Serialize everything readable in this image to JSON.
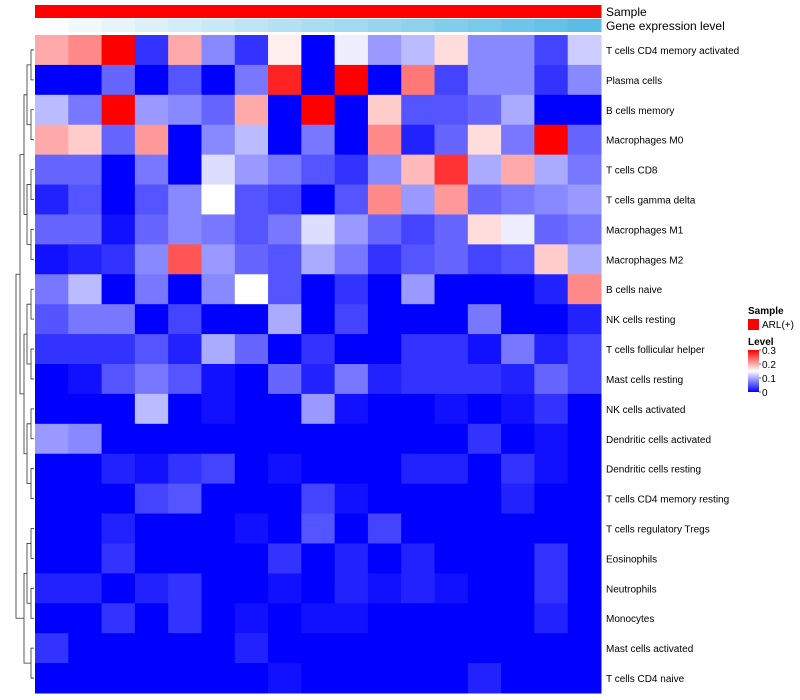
{
  "chart_data": {
    "type": "heatmap",
    "title": "",
    "columns_count": 17,
    "annotations": [
      {
        "name": "Sample",
        "colors": [
          "#ff0000",
          "#ff0000",
          "#ff0000",
          "#ff0000",
          "#ff0000",
          "#ff0000",
          "#ff0000",
          "#ff0000",
          "#ff0000",
          "#ff0000",
          "#ff0000",
          "#ff0000",
          "#ff0000",
          "#ff0000",
          "#ff0000",
          "#ff0000",
          "#ff0000"
        ]
      },
      {
        "name": "Gene expression level",
        "colors": [
          "#fbfdfe",
          "#f1f9fd",
          "#e7f5fb",
          "#ddf1f9",
          "#d3edf8",
          "#c9e9f6",
          "#bfe5f5",
          "#b5e1f3",
          "#abddf2",
          "#a1d9f0",
          "#97d5ef",
          "#8dd1ed",
          "#83cdec",
          "#79c9ea",
          "#6fc5e9",
          "#65c1e7",
          "#5bbde6"
        ]
      }
    ],
    "rows": [
      {
        "label": "T cells CD4 memory activated",
        "values": [
          0.2,
          0.22,
          0.3,
          0.03,
          0.2,
          0.08,
          0.03,
          0.16,
          0.0,
          0.14,
          0.09,
          0.11,
          0.17,
          0.08,
          0.08,
          0.04,
          0.12
        ]
      },
      {
        "label": "Plasma cells",
        "values": [
          0.0,
          0.0,
          0.06,
          0.0,
          0.05,
          0.0,
          0.07,
          0.28,
          0.0,
          0.3,
          0.0,
          0.23,
          0.04,
          0.08,
          0.08,
          0.03,
          0.08
        ]
      },
      {
        "label": "B cells memory",
        "values": [
          0.11,
          0.07,
          0.3,
          0.09,
          0.08,
          0.06,
          0.2,
          0.0,
          0.3,
          0.0,
          0.18,
          0.05,
          0.05,
          0.06,
          0.1,
          0.0,
          0.0
        ]
      },
      {
        "label": "Macrophages M0",
        "values": [
          0.2,
          0.18,
          0.06,
          0.21,
          0.0,
          0.08,
          0.11,
          0.0,
          0.07,
          0.0,
          0.22,
          0.02,
          0.06,
          0.17,
          0.07,
          0.3,
          0.06
        ]
      },
      {
        "label": "T cells CD8",
        "values": [
          0.06,
          0.06,
          0.0,
          0.07,
          0.0,
          0.13,
          0.09,
          0.07,
          0.05,
          0.03,
          0.08,
          0.19,
          0.27,
          0.1,
          0.2,
          0.1,
          0.07
        ]
      },
      {
        "label": "T cells gamma delta",
        "values": [
          0.02,
          0.05,
          0.0,
          0.05,
          0.08,
          0.15,
          0.05,
          0.04,
          0.0,
          0.05,
          0.22,
          0.09,
          0.21,
          0.06,
          0.07,
          0.08,
          0.09
        ]
      },
      {
        "label": "Macrophages M1",
        "values": [
          0.06,
          0.06,
          0.01,
          0.06,
          0.08,
          0.07,
          0.05,
          0.07,
          0.13,
          0.09,
          0.06,
          0.04,
          0.06,
          0.17,
          0.14,
          0.06,
          0.07
        ]
      },
      {
        "label": "Macrophages M2",
        "values": [
          0.01,
          0.02,
          0.03,
          0.08,
          0.25,
          0.09,
          0.06,
          0.05,
          0.1,
          0.07,
          0.03,
          0.05,
          0.06,
          0.04,
          0.05,
          0.18,
          0.1
        ]
      },
      {
        "label": "B cells naive",
        "values": [
          0.07,
          0.11,
          0.0,
          0.07,
          0.0,
          0.08,
          0.15,
          0.05,
          0.0,
          0.03,
          0.0,
          0.09,
          0.0,
          0.0,
          0.0,
          0.02,
          0.22
        ]
      },
      {
        "label": "NK cells resting",
        "values": [
          0.05,
          0.07,
          0.07,
          0.0,
          0.04,
          0.0,
          0.0,
          0.1,
          0.0,
          0.04,
          0.0,
          0.0,
          0.0,
          0.07,
          0.0,
          0.0,
          0.02
        ]
      },
      {
        "label": "T cells follicular helper",
        "values": [
          0.03,
          0.03,
          0.03,
          0.05,
          0.02,
          0.1,
          0.06,
          0.0,
          0.03,
          0.0,
          0.0,
          0.03,
          0.03,
          0.01,
          0.07,
          0.02,
          0.04
        ]
      },
      {
        "label": "Mast cells resting",
        "values": [
          0.0,
          0.01,
          0.05,
          0.07,
          0.05,
          0.01,
          0.0,
          0.06,
          0.02,
          0.07,
          0.02,
          0.03,
          0.03,
          0.03,
          0.02,
          0.06,
          0.04
        ]
      },
      {
        "label": "NK cells activated",
        "values": [
          0.0,
          0.0,
          0.0,
          0.11,
          0.0,
          0.01,
          0.0,
          0.0,
          0.09,
          0.01,
          0.0,
          0.0,
          0.01,
          0.0,
          0.01,
          0.03,
          0.0
        ]
      },
      {
        "label": "Dendritic cells activated",
        "values": [
          0.09,
          0.08,
          0.0,
          0.0,
          0.0,
          0.0,
          0.0,
          0.0,
          0.0,
          0.0,
          0.0,
          0.0,
          0.0,
          0.03,
          0.0,
          0.01,
          0.0
        ]
      },
      {
        "label": "Dendritic cells resting",
        "values": [
          0.0,
          0.0,
          0.02,
          0.01,
          0.03,
          0.04,
          0.0,
          0.01,
          0.0,
          0.0,
          0.0,
          0.02,
          0.02,
          0.0,
          0.03,
          0.01,
          0.0
        ]
      },
      {
        "label": "T cells CD4 memory resting",
        "values": [
          0.0,
          0.0,
          0.0,
          0.04,
          0.05,
          0.0,
          0.0,
          0.0,
          0.04,
          0.01,
          0.0,
          0.0,
          0.0,
          0.0,
          0.02,
          0.0,
          0.0
        ]
      },
      {
        "label": "T cells regulatory  Tregs",
        "values": [
          0.0,
          0.0,
          0.02,
          0.0,
          0.0,
          0.0,
          0.01,
          0.0,
          0.05,
          0.0,
          0.04,
          0.0,
          0.0,
          0.0,
          0.0,
          0.0,
          0.0
        ]
      },
      {
        "label": "Eosinophils",
        "values": [
          0.0,
          0.0,
          0.03,
          0.0,
          0.0,
          0.0,
          0.0,
          0.03,
          0.0,
          0.02,
          0.0,
          0.02,
          0.0,
          0.0,
          0.0,
          0.03,
          0.0
        ]
      },
      {
        "label": "Neutrophils",
        "values": [
          0.02,
          0.02,
          0.0,
          0.02,
          0.03,
          0.0,
          0.0,
          0.01,
          0.0,
          0.02,
          0.01,
          0.02,
          0.01,
          0.0,
          0.0,
          0.03,
          0.0
        ]
      },
      {
        "label": "Monocytes",
        "values": [
          0.0,
          0.0,
          0.03,
          0.0,
          0.03,
          0.0,
          0.01,
          0.0,
          0.01,
          0.01,
          0.0,
          0.0,
          0.0,
          0.0,
          0.0,
          0.02,
          0.0
        ]
      },
      {
        "label": "Mast cells activated",
        "values": [
          0.03,
          0.0,
          0.0,
          0.0,
          0.0,
          0.0,
          0.02,
          0.0,
          0.0,
          0.0,
          0.0,
          0.0,
          0.0,
          0.0,
          0.0,
          0.0,
          0.0
        ]
      },
      {
        "label": "T cells CD4 naive",
        "values": [
          0.0,
          0.0,
          0.0,
          0.0,
          0.0,
          0.0,
          0.0,
          0.01,
          0.0,
          0.0,
          0.0,
          0.0,
          0.0,
          0.02,
          0.0,
          0.0,
          0.0
        ]
      }
    ],
    "color_scale": {
      "min": 0,
      "max": 0.3,
      "low_color": "#0000ff",
      "mid_color": "#ffffff",
      "high_color": "#ff0000",
      "mid_value": 0.15
    },
    "legend": {
      "position": "right",
      "sample_title": "Sample",
      "sample_items": [
        {
          "label": "ARL(+)",
          "color": "#ff0000"
        }
      ],
      "level_title": "Level",
      "level_ticks": [
        {
          "value": 0.3,
          "label": "0.3"
        },
        {
          "value": 0.2,
          "label": "0.2"
        },
        {
          "value": 0.1,
          "label": "0.1"
        },
        {
          "value": 0,
          "label": "0"
        }
      ]
    }
  }
}
